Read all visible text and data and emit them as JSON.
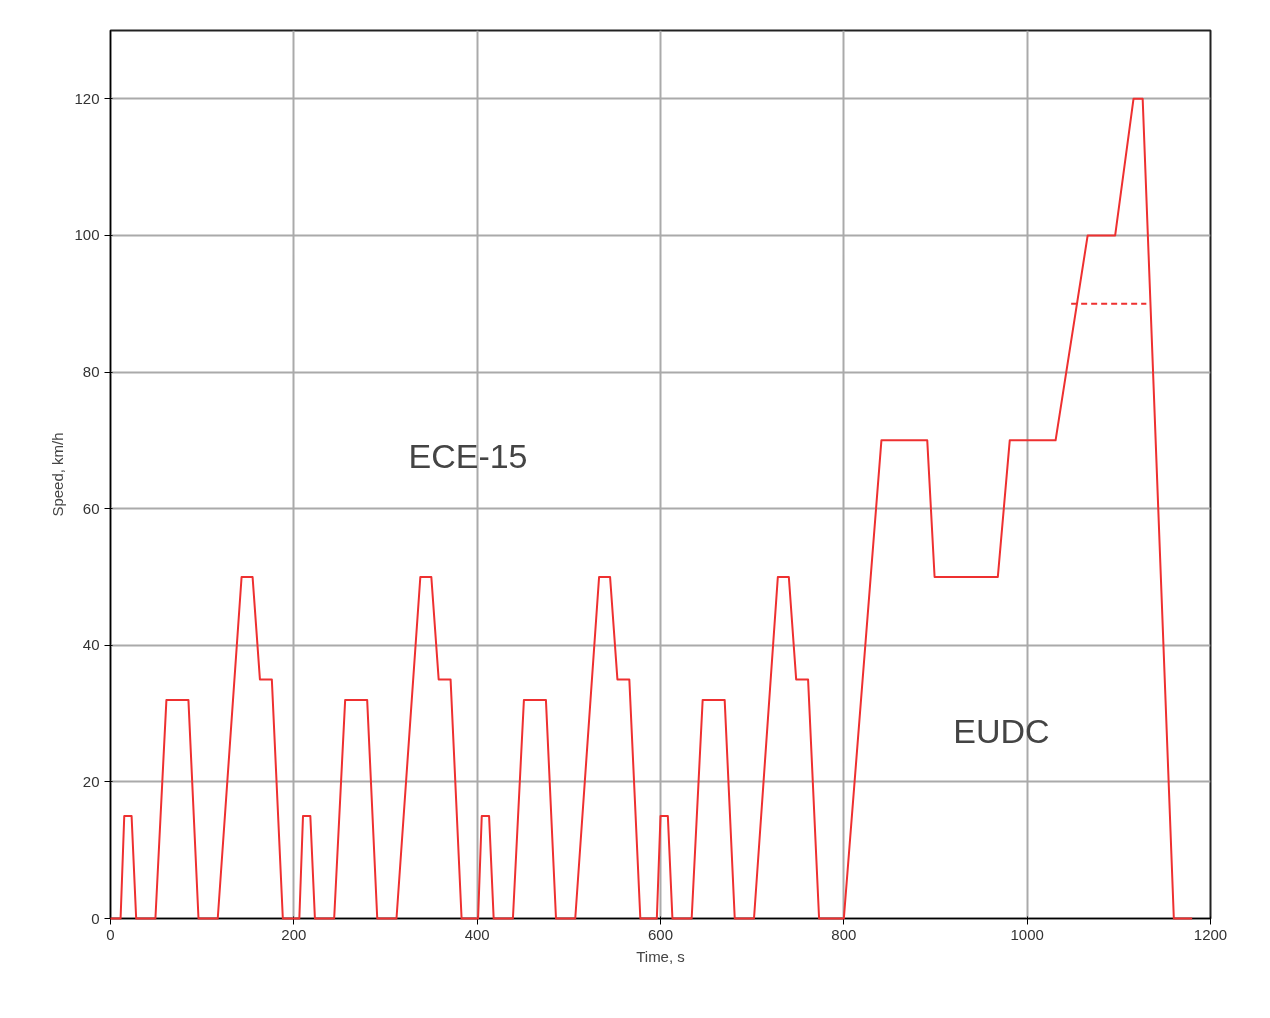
{
  "chart_data": {
    "type": "line",
    "xlabel": "Time, s",
    "ylabel": "Speed, km/h",
    "xlim": [
      0,
      1200
    ],
    "ylim": [
      0,
      130
    ],
    "xticks": [
      0,
      200,
      400,
      600,
      800,
      1000,
      1200
    ],
    "yticks": [
      0,
      20,
      40,
      60,
      80,
      100,
      120
    ],
    "grid": true,
    "series": [
      {
        "color": "#ee3030",
        "line_style": "solid",
        "x": [
          0,
          11,
          15,
          23,
          28,
          49,
          61,
          85,
          96,
          117,
          143,
          155,
          163,
          176,
          188,
          195,
          206,
          210,
          218,
          223,
          244,
          256,
          280,
          291,
          312,
          338,
          350,
          358,
          371,
          383,
          390,
          401,
          405,
          413,
          418,
          439,
          451,
          475,
          486,
          507,
          533,
          545,
          553,
          566,
          578,
          585,
          596,
          600,
          608,
          613,
          634,
          646,
          670,
          681,
          702,
          728,
          740,
          748,
          761,
          773,
          780,
          800,
          841,
          891,
          899,
          968,
          981,
          1031,
          1066,
          1096,
          1116,
          1126,
          1160,
          1180
        ],
        "values": [
          0,
          0,
          15,
          15,
          0,
          0,
          32,
          32,
          0,
          0,
          50,
          50,
          35,
          35,
          0,
          0,
          0,
          15,
          15,
          0,
          0,
          32,
          32,
          0,
          0,
          50,
          50,
          35,
          35,
          0,
          0,
          0,
          15,
          15,
          0,
          0,
          32,
          32,
          0,
          0,
          50,
          50,
          35,
          35,
          0,
          0,
          0,
          15,
          15,
          0,
          0,
          32,
          32,
          0,
          0,
          50,
          50,
          35,
          35,
          0,
          0,
          0,
          70,
          70,
          50,
          50,
          70,
          70,
          100,
          100,
          120,
          120,
          0,
          0
        ]
      },
      {
        "color": "#ee3030",
        "line_style": "dashed",
        "x": [
          1048,
          1130
        ],
        "values": [
          90,
          90
        ]
      }
    ],
    "annotations": [
      "ECE-15",
      "EUDC"
    ]
  }
}
